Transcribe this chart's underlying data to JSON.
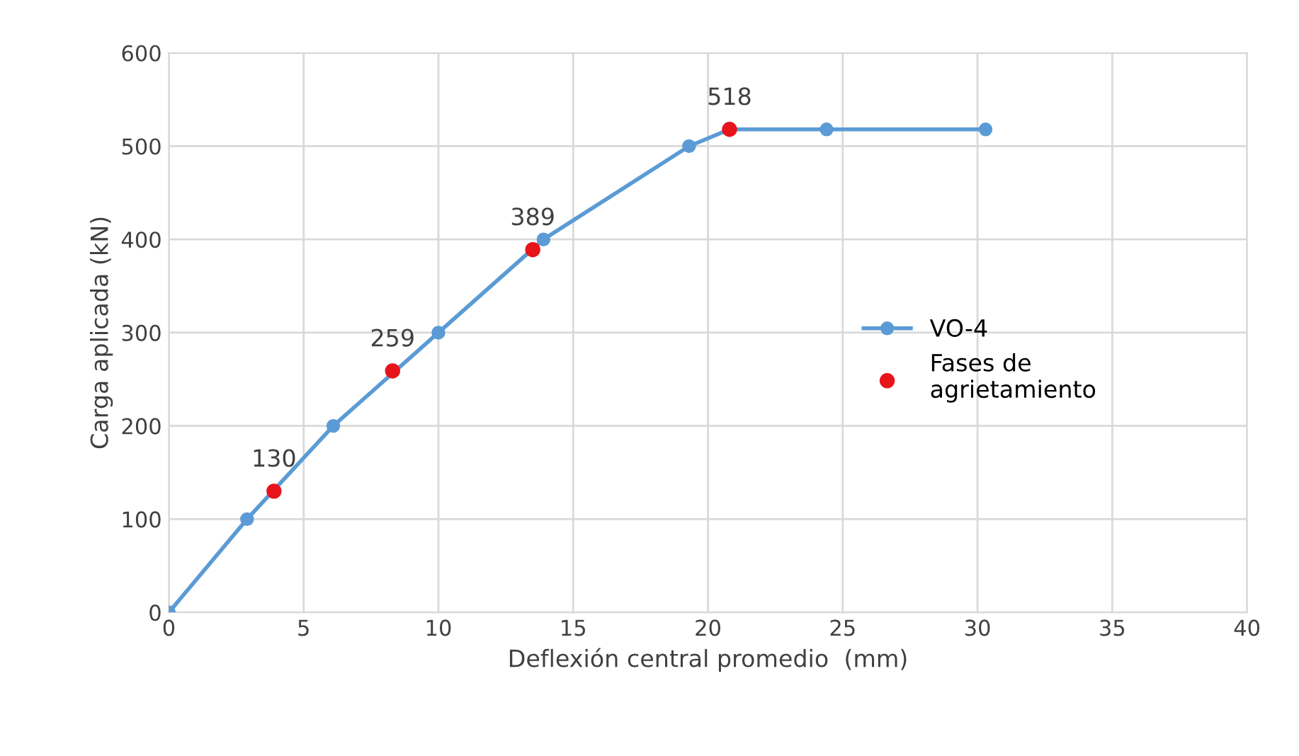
{
  "chart_data": {
    "type": "line",
    "xlabel": "Deflexión central promedio  (mm)",
    "ylabel": "Carga aplicada (kN)",
    "xlim": [
      0,
      40
    ],
    "xticks": [
      0,
      5,
      10,
      15,
      20,
      25,
      30,
      35,
      40
    ],
    "ylim": [
      0,
      600
    ],
    "yticks": [
      0,
      100,
      200,
      300,
      400,
      500,
      600
    ],
    "grid": true,
    "legend": "center right",
    "marker": "circle",
    "series": [
      {
        "name": "VO-4",
        "color": "#5b9bd5",
        "x": [
          0,
          2.9,
          6.1,
          10,
          13.9,
          19.3,
          20.8,
          24.4,
          30.3
        ],
        "values": [
          0,
          100,
          200,
          300,
          400,
          500,
          518,
          518,
          518
        ]
      },
      {
        "name": "Fases de\nagrietamiento",
        "color": "#e8141b",
        "type": "scatter",
        "x": [
          3.9,
          8.3,
          13.5,
          20.8
        ],
        "values": [
          130,
          259,
          389,
          518
        ],
        "value_labels": [
          "130",
          "259",
          "389",
          "518"
        ]
      }
    ]
  }
}
